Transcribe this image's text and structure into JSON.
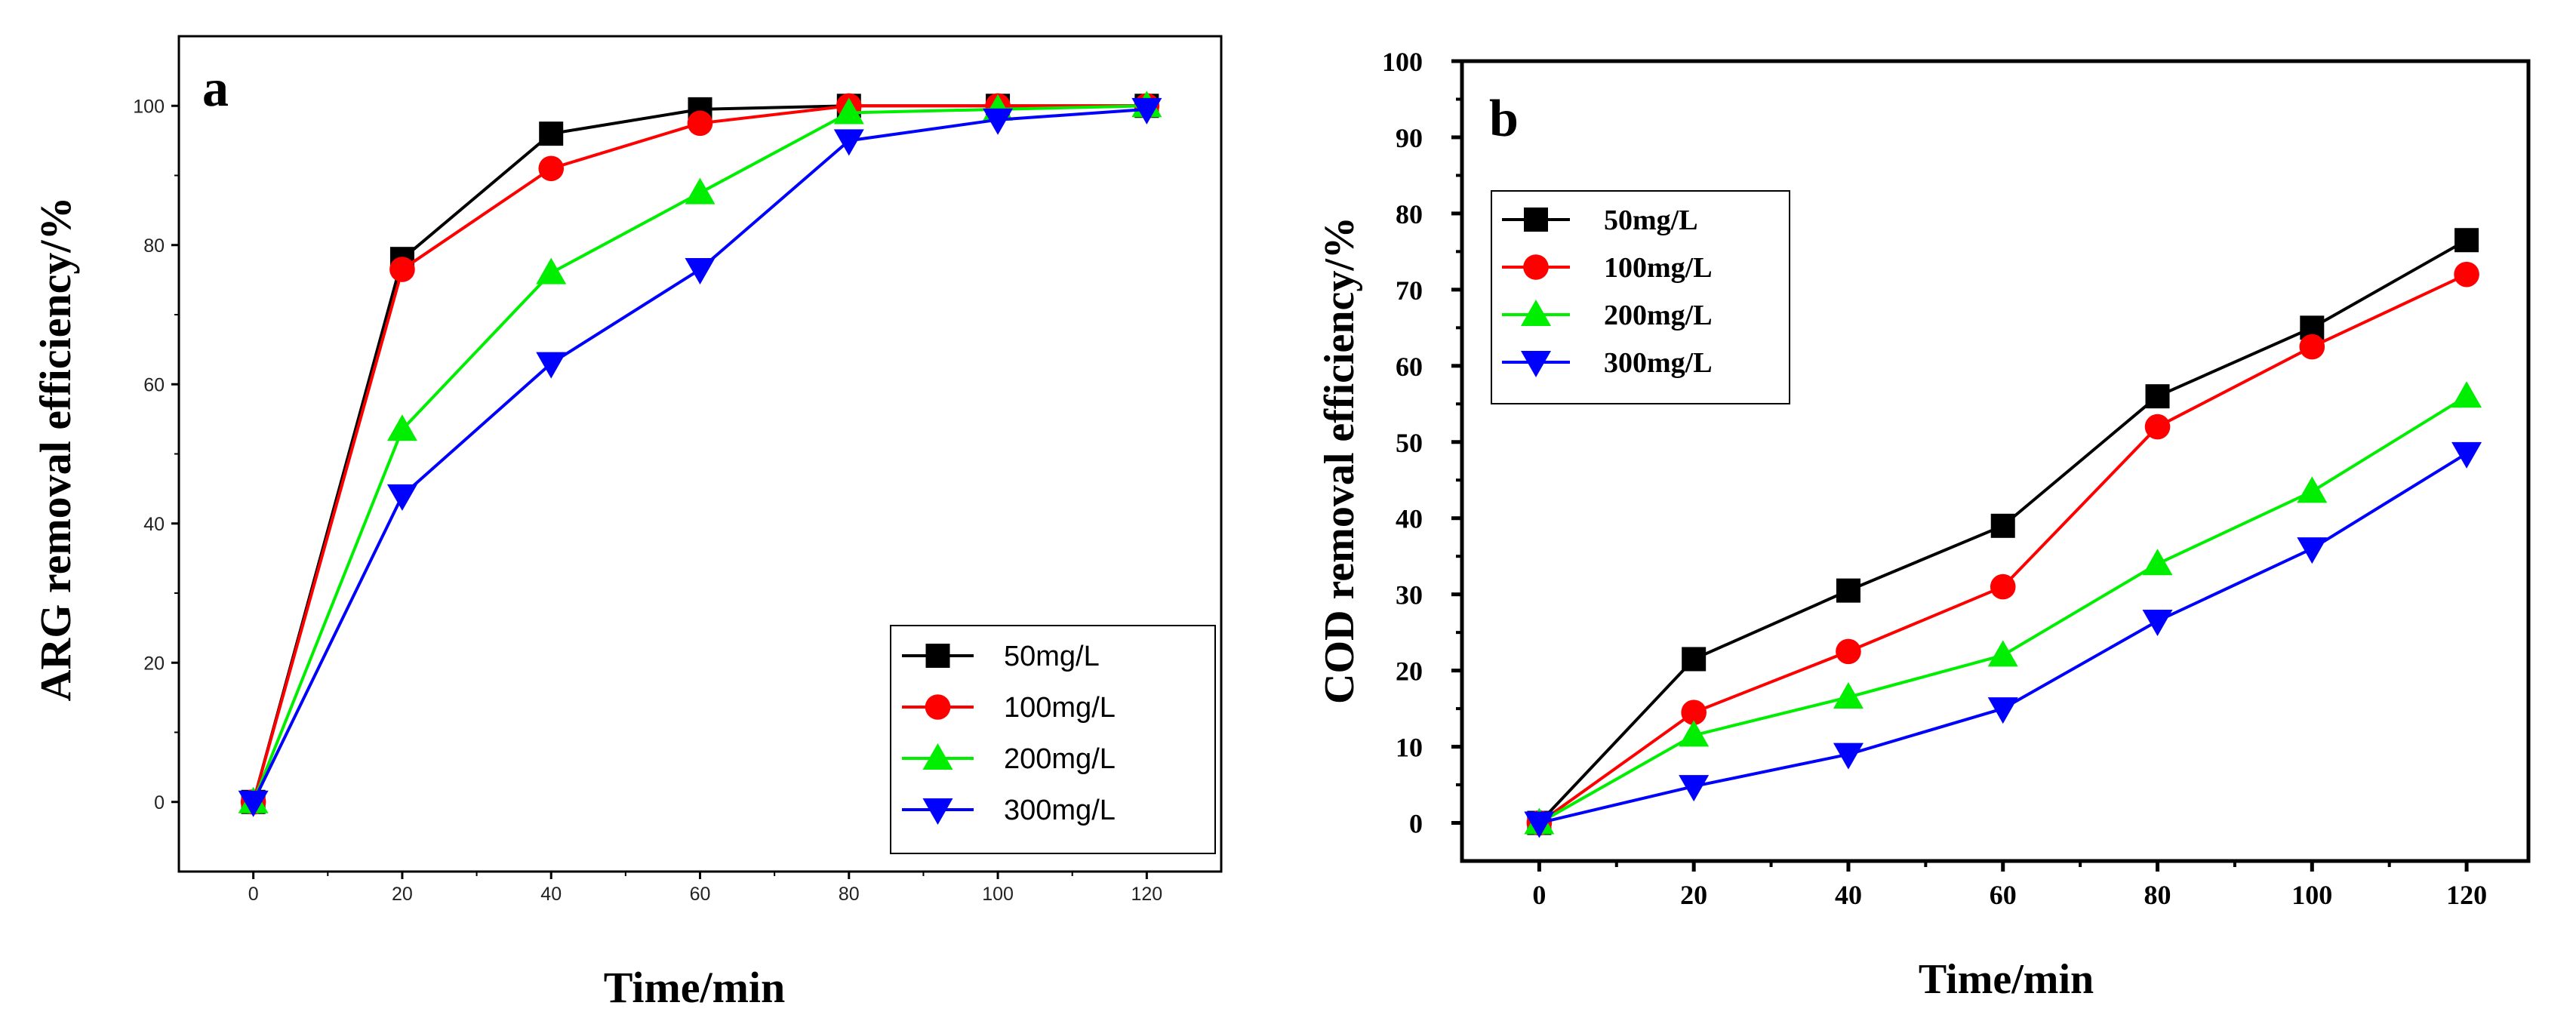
{
  "chart_data": [
    {
      "type": "line",
      "panel": "a",
      "xlabel": "Time/min",
      "ylabel": "ARG removal efficiency/%",
      "xlim": [
        -10,
        130
      ],
      "ylim": [
        -10,
        110
      ],
      "xticks": [
        0,
        20,
        40,
        60,
        80,
        100,
        120
      ],
      "yticks": [
        0,
        20,
        40,
        60,
        80,
        100
      ],
      "x": [
        0,
        20,
        40,
        60,
        80,
        100,
        120
      ],
      "legend_position": "bottom-right",
      "series": [
        {
          "name": "50mg/L",
          "color": "#000000",
          "marker": "square",
          "values": [
            0,
            78,
            96,
            99.5,
            100,
            100,
            100
          ]
        },
        {
          "name": "100mg/L",
          "color": "#ff0000",
          "marker": "circle",
          "values": [
            0,
            76.5,
            91,
            97.5,
            100,
            100,
            100
          ]
        },
        {
          "name": "200mg/L",
          "color": "#00ee00",
          "marker": "triangle-up",
          "values": [
            0,
            53.5,
            76,
            87.5,
            99,
            99.5,
            100
          ]
        },
        {
          "name": "300mg/L",
          "color": "#0000ff",
          "marker": "triangle-down",
          "values": [
            0,
            44,
            63,
            76.5,
            95,
            98,
            99.5
          ]
        }
      ]
    },
    {
      "type": "line",
      "panel": "b",
      "xlabel": "Time/min",
      "ylabel": "COD removal efficiency/%",
      "xlim": [
        -10,
        128
      ],
      "ylim": [
        -5,
        100
      ],
      "xticks": [
        0,
        20,
        40,
        60,
        80,
        100,
        120
      ],
      "yticks": [
        0,
        10,
        20,
        30,
        40,
        50,
        60,
        70,
        80,
        90,
        100
      ],
      "x": [
        0,
        20,
        40,
        60,
        80,
        100,
        120
      ],
      "legend_position": "top-left",
      "series": [
        {
          "name": "50mg/L",
          "color": "#000000",
          "marker": "square",
          "values": [
            0,
            21.5,
            30.5,
            39,
            56,
            65,
            76.5
          ]
        },
        {
          "name": "100mg/L",
          "color": "#ff0000",
          "marker": "circle",
          "values": [
            0,
            14.5,
            22.5,
            31,
            52,
            62.5,
            72
          ]
        },
        {
          "name": "200mg/L",
          "color": "#00ee00",
          "marker": "triangle-up",
          "values": [
            0,
            11.5,
            16.5,
            22,
            34,
            43.5,
            56
          ]
        },
        {
          "name": "300mg/L",
          "color": "#0000ff",
          "marker": "triangle-down",
          "values": [
            0,
            4.8,
            9,
            15,
            26.5,
            36,
            48.5
          ]
        }
      ]
    }
  ]
}
